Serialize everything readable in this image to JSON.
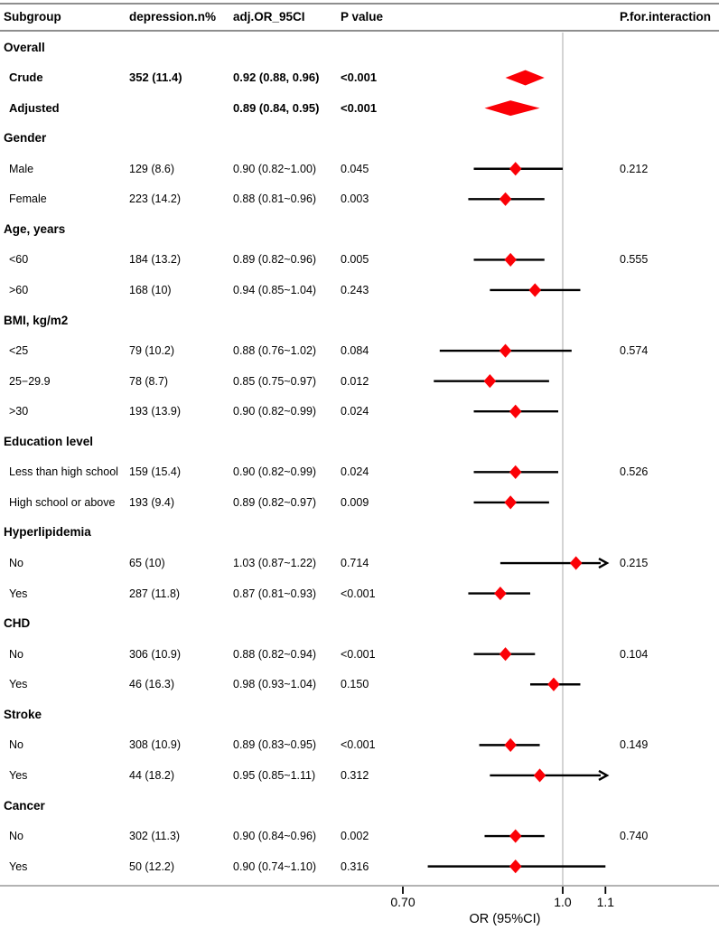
{
  "header": {
    "subgroup": "Subgroup",
    "n": "depression.n%",
    "or": "adj.OR_95CI",
    "p": "P value",
    "pint": "P.for.interaction"
  },
  "axis": {
    "title": "OR (95%CI)",
    "scale": "log",
    "min": 0.7,
    "max": 1.1,
    "reference": 1.0,
    "ticks": [
      {
        "value": 0.7,
        "label": "0.70"
      },
      {
        "value": 1.0,
        "label": "1.0"
      },
      {
        "value": 1.1,
        "label": "1.1"
      }
    ]
  },
  "colors": {
    "marker": "#fb0006",
    "ci_line": "#000000",
    "reference_line": "#c9c9c9",
    "rule_dark": "#8e8e8e",
    "rule_light": "#b3b3b3",
    "text": "#000000"
  },
  "rows": [
    {
      "type": "section",
      "label": "Overall"
    },
    {
      "type": "data",
      "bold": true,
      "label": "Crude",
      "n": "352 (11.4)",
      "or_ci": "0.92 (0.88, 0.96)",
      "p": "<0.001",
      "pint": "",
      "plot": {
        "or": 0.92,
        "lo": 0.88,
        "hi": 0.96,
        "marker": "summary",
        "arrow": false
      }
    },
    {
      "type": "data",
      "bold": true,
      "label": "Adjusted",
      "n": "",
      "or_ci": "0.89 (0.84, 0.95)",
      "p": "<0.001",
      "pint": "",
      "plot": {
        "or": 0.89,
        "lo": 0.84,
        "hi": 0.95,
        "marker": "summary",
        "arrow": false
      }
    },
    {
      "type": "section",
      "label": "Gender"
    },
    {
      "type": "data",
      "bold": false,
      "label": "Male",
      "n": "129 (8.6)",
      "or_ci": "0.90 (0.82~1.00)",
      "p": "0.045",
      "pint": "0.212",
      "plot": {
        "or": 0.9,
        "lo": 0.82,
        "hi": 1.0,
        "marker": "point",
        "arrow": false
      }
    },
    {
      "type": "data",
      "bold": false,
      "label": "Female",
      "n": "223 (14.2)",
      "or_ci": "0.88 (0.81~0.96)",
      "p": "0.003",
      "pint": "",
      "plot": {
        "or": 0.88,
        "lo": 0.81,
        "hi": 0.96,
        "marker": "point",
        "arrow": false
      }
    },
    {
      "type": "section",
      "label": "Age, years"
    },
    {
      "type": "data",
      "bold": false,
      "label": "<60",
      "n": "184 (13.2)",
      "or_ci": "0.89 (0.82~0.96)",
      "p": "0.005",
      "pint": "0.555",
      "plot": {
        "or": 0.89,
        "lo": 0.82,
        "hi": 0.96,
        "marker": "point",
        "arrow": false
      }
    },
    {
      "type": "data",
      "bold": false,
      "label": ">60",
      "n": "168 (10)",
      "or_ci": "0.94 (0.85~1.04)",
      "p": "0.243",
      "pint": "",
      "plot": {
        "or": 0.94,
        "lo": 0.85,
        "hi": 1.04,
        "marker": "point",
        "arrow": false
      }
    },
    {
      "type": "section",
      "label": "BMI, kg/m2"
    },
    {
      "type": "data",
      "bold": false,
      "label": "<25",
      "n": "79 (10.2)",
      "or_ci": "0.88 (0.76~1.02)",
      "p": "0.084",
      "pint": "0.574",
      "plot": {
        "or": 0.88,
        "lo": 0.76,
        "hi": 1.02,
        "marker": "point",
        "arrow": false
      }
    },
    {
      "type": "data",
      "bold": false,
      "label": "25−29.9",
      "n": "78 (8.7)",
      "or_ci": "0.85 (0.75~0.97)",
      "p": "0.012",
      "pint": "",
      "plot": {
        "or": 0.85,
        "lo": 0.75,
        "hi": 0.97,
        "marker": "point",
        "arrow": false
      }
    },
    {
      "type": "data",
      "bold": false,
      "label": ">30",
      "n": "193 (13.9)",
      "or_ci": "0.90 (0.82~0.99)",
      "p": "0.024",
      "pint": "",
      "plot": {
        "or": 0.9,
        "lo": 0.82,
        "hi": 0.99,
        "marker": "point",
        "arrow": false
      }
    },
    {
      "type": "section",
      "label": "Education level"
    },
    {
      "type": "data",
      "bold": false,
      "label": "Less than high school",
      "n": "159 (15.4)",
      "or_ci": "0.90 (0.82~0.99)",
      "p": "0.024",
      "pint": "0.526",
      "plot": {
        "or": 0.9,
        "lo": 0.82,
        "hi": 0.99,
        "marker": "point",
        "arrow": false
      }
    },
    {
      "type": "data",
      "bold": false,
      "label": "High school or above",
      "n": "193 (9.4)",
      "or_ci": "0.89 (0.82~0.97)",
      "p": "0.009",
      "pint": "",
      "plot": {
        "or": 0.89,
        "lo": 0.82,
        "hi": 0.97,
        "marker": "point",
        "arrow": false
      }
    },
    {
      "type": "section",
      "label": "Hyperlipidemia"
    },
    {
      "type": "data",
      "bold": false,
      "label": "No",
      "n": "65 (10)",
      "or_ci": "1.03 (0.87~1.22)",
      "p": "0.714",
      "pint": "0.215",
      "plot": {
        "or": 1.03,
        "lo": 0.87,
        "hi": 1.22,
        "marker": "point",
        "arrow": true
      }
    },
    {
      "type": "data",
      "bold": false,
      "label": "Yes",
      "n": "287 (11.8)",
      "or_ci": "0.87 (0.81~0.93)",
      "p": "<0.001",
      "pint": "",
      "plot": {
        "or": 0.87,
        "lo": 0.81,
        "hi": 0.93,
        "marker": "point",
        "arrow": false
      }
    },
    {
      "type": "section",
      "label": "CHD"
    },
    {
      "type": "data",
      "bold": false,
      "label": "No",
      "n": "306 (10.9)",
      "or_ci": "0.88 (0.82~0.94)",
      "p": "<0.001",
      "pint": "0.104",
      "plot": {
        "or": 0.88,
        "lo": 0.82,
        "hi": 0.94,
        "marker": "point",
        "arrow": false
      }
    },
    {
      "type": "data",
      "bold": false,
      "label": "Yes",
      "n": "46 (16.3)",
      "or_ci": "0.98 (0.93~1.04)",
      "p": "0.150",
      "pint": "",
      "plot": {
        "or": 0.98,
        "lo": 0.93,
        "hi": 1.04,
        "marker": "point",
        "arrow": false
      }
    },
    {
      "type": "section",
      "label": "Stroke"
    },
    {
      "type": "data",
      "bold": false,
      "label": "No",
      "n": "308 (10.9)",
      "or_ci": "0.89 (0.83~0.95)",
      "p": "<0.001",
      "pint": "0.149",
      "plot": {
        "or": 0.89,
        "lo": 0.83,
        "hi": 0.95,
        "marker": "point",
        "arrow": false
      }
    },
    {
      "type": "data",
      "bold": false,
      "label": "Yes",
      "n": "44 (18.2)",
      "or_ci": "0.95 (0.85~1.11)",
      "p": "0.312",
      "pint": "",
      "plot": {
        "or": 0.95,
        "lo": 0.85,
        "hi": 1.11,
        "marker": "point",
        "arrow": true
      }
    },
    {
      "type": "section",
      "label": "Cancer"
    },
    {
      "type": "data",
      "bold": false,
      "label": "No",
      "n": "302 (11.3)",
      "or_ci": "0.90 (0.84~0.96)",
      "p": "0.002",
      "pint": "0.740",
      "plot": {
        "or": 0.9,
        "lo": 0.84,
        "hi": 0.96,
        "marker": "point",
        "arrow": false
      }
    },
    {
      "type": "data",
      "bold": false,
      "label": "Yes",
      "n": "50 (12.2)",
      "or_ci": "0.90 (0.74~1.10)",
      "p": "0.316",
      "pint": "",
      "plot": {
        "or": 0.9,
        "lo": 0.74,
        "hi": 1.1,
        "marker": "point",
        "arrow": false
      }
    }
  ],
  "chart_data": {
    "type": "scatter",
    "variant": "forest-plot",
    "title": "",
    "xlabel": "OR (95%CI)",
    "x_scale": "log",
    "xlim": [
      0.7,
      1.1
    ],
    "x_ticks": [
      "0.70",
      "1.0",
      "1.1"
    ],
    "reference_line": 1.0,
    "legend_position": "none",
    "grid": false,
    "points": [
      {
        "subgroup": "Overall Crude",
        "or": 0.92,
        "lo": 0.88,
        "hi": 0.96,
        "marker": "summary-diamond"
      },
      {
        "subgroup": "Overall Adjusted",
        "or": 0.89,
        "lo": 0.84,
        "hi": 0.95,
        "marker": "summary-diamond"
      },
      {
        "subgroup": "Gender Male",
        "or": 0.9,
        "lo": 0.82,
        "hi": 1.0,
        "p_interaction": 0.212
      },
      {
        "subgroup": "Gender Female",
        "or": 0.88,
        "lo": 0.81,
        "hi": 0.96
      },
      {
        "subgroup": "Age <60",
        "or": 0.89,
        "lo": 0.82,
        "hi": 0.96,
        "p_interaction": 0.555
      },
      {
        "subgroup": "Age >60",
        "or": 0.94,
        "lo": 0.85,
        "hi": 1.04
      },
      {
        "subgroup": "BMI <25",
        "or": 0.88,
        "lo": 0.76,
        "hi": 1.02,
        "p_interaction": 0.574
      },
      {
        "subgroup": "BMI 25−29.9",
        "or": 0.85,
        "lo": 0.75,
        "hi": 0.97
      },
      {
        "subgroup": "BMI >30",
        "or": 0.9,
        "lo": 0.82,
        "hi": 0.99
      },
      {
        "subgroup": "Less than high school",
        "or": 0.9,
        "lo": 0.82,
        "hi": 0.99,
        "p_interaction": 0.526
      },
      {
        "subgroup": "High school or above",
        "or": 0.89,
        "lo": 0.82,
        "hi": 0.97
      },
      {
        "subgroup": "Hyperlipidemia No",
        "or": 1.03,
        "lo": 0.87,
        "hi": 1.22,
        "clipped_right": true,
        "p_interaction": 0.215
      },
      {
        "subgroup": "Hyperlipidemia Yes",
        "or": 0.87,
        "lo": 0.81,
        "hi": 0.93
      },
      {
        "subgroup": "CHD No",
        "or": 0.88,
        "lo": 0.82,
        "hi": 0.94,
        "p_interaction": 0.104
      },
      {
        "subgroup": "CHD Yes",
        "or": 0.98,
        "lo": 0.93,
        "hi": 1.04
      },
      {
        "subgroup": "Stroke No",
        "or": 0.89,
        "lo": 0.83,
        "hi": 0.95,
        "p_interaction": 0.149
      },
      {
        "subgroup": "Stroke Yes",
        "or": 0.95,
        "lo": 0.85,
        "hi": 1.11,
        "clipped_right": true
      },
      {
        "subgroup": "Cancer No",
        "or": 0.9,
        "lo": 0.84,
        "hi": 0.96,
        "p_interaction": 0.74
      },
      {
        "subgroup": "Cancer Yes",
        "or": 0.9,
        "lo": 0.74,
        "hi": 1.1
      }
    ]
  }
}
